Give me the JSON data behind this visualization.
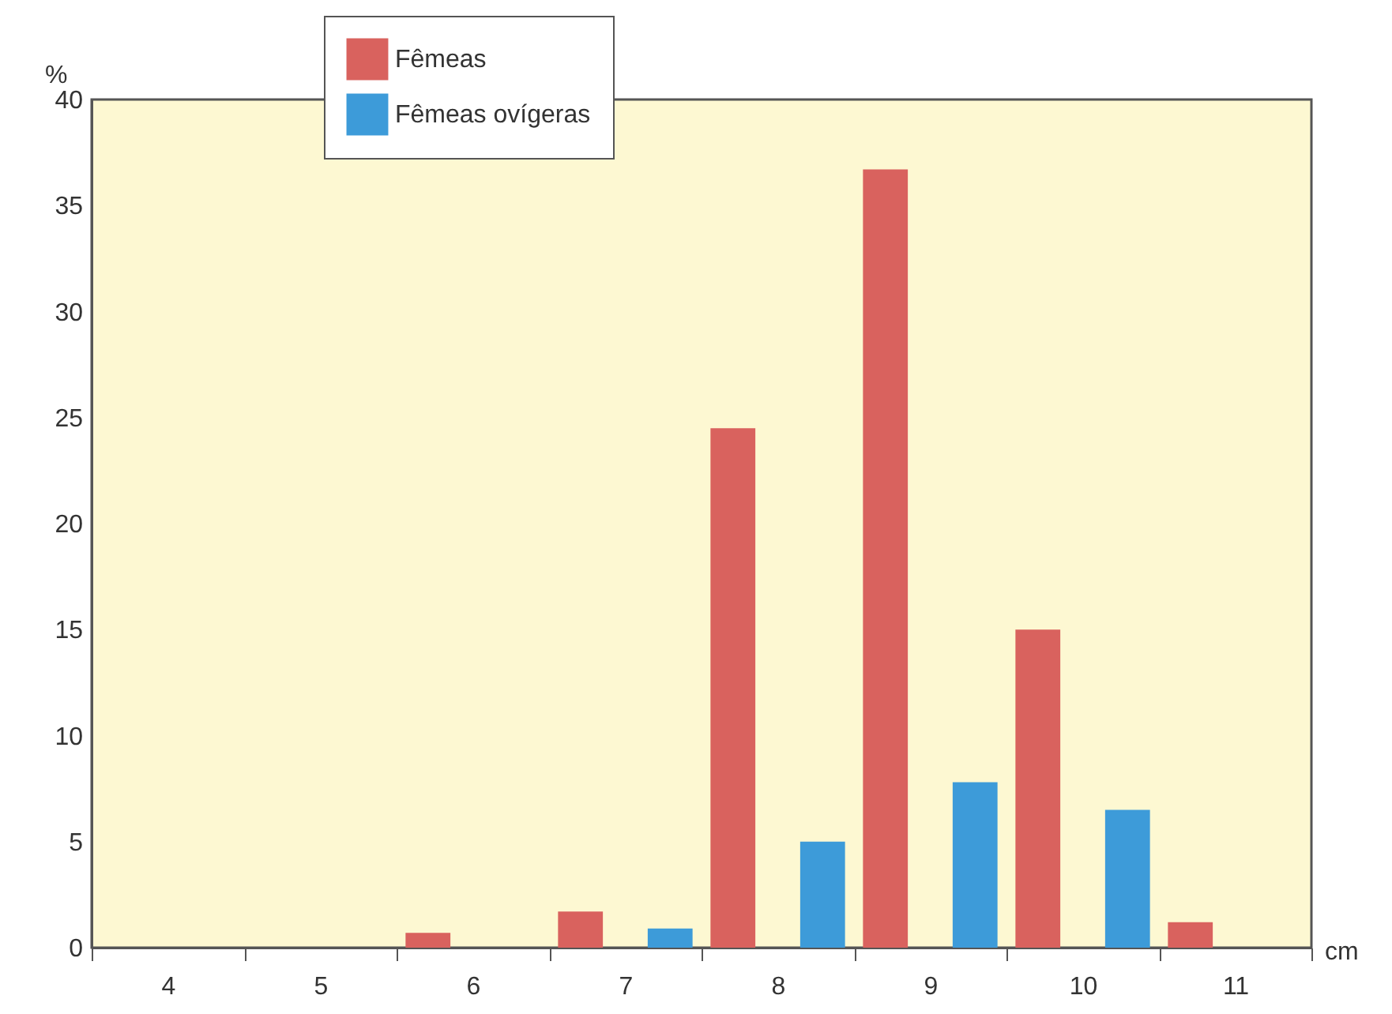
{
  "chart_data": {
    "type": "bar",
    "xlabel": "cm",
    "ylabel": "%",
    "categories": [
      "4",
      "5",
      "6",
      "7",
      "8",
      "9",
      "10",
      "11"
    ],
    "series": [
      {
        "name": "Fêmeas",
        "color": "#d9625e",
        "values": [
          0,
          0,
          0.7,
          1.7,
          24.5,
          36.7,
          15.0,
          1.2
        ]
      },
      {
        "name": "Fêmeas ovígeras",
        "color": "#3d9bd9",
        "values": [
          0,
          0,
          0,
          0.9,
          5.0,
          7.8,
          6.5,
          0
        ]
      }
    ],
    "ylim": [
      0,
      40
    ],
    "yticks": [
      0,
      5,
      10,
      15,
      20,
      25,
      30,
      35,
      40
    ],
    "grid": false,
    "legend": "top left"
  }
}
